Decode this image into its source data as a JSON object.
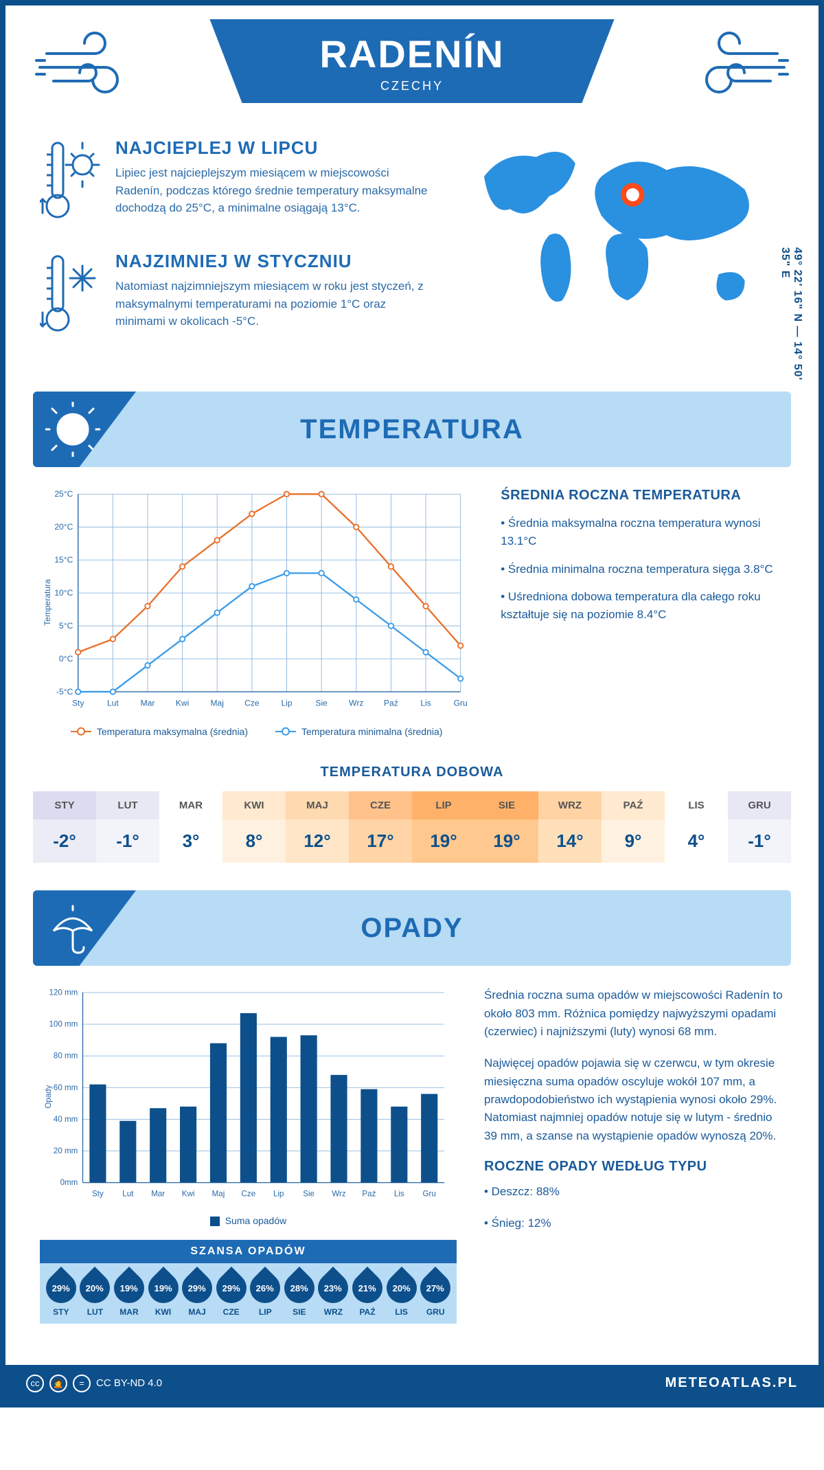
{
  "header": {
    "title": "RADENÍN",
    "country": "CZECHY",
    "coords": "49° 22' 16\" N — 14° 50' 35\" E"
  },
  "facts": {
    "hot": {
      "title": "NAJCIEPLEJ W LIPCU",
      "text": "Lipiec jest najcieplejszym miesiącem w miejscowości Radenín, podczas którego średnie temperatury maksymalne dochodzą do 25°C, a minimalne osiągają 13°C."
    },
    "cold": {
      "title": "NAJZIMNIEJ W STYCZNIU",
      "text": "Natomiast najzimniejszym miesiącem w roku jest styczeń, z maksymalnymi temperaturami na poziomie 1°C oraz minimami w okolicach -5°C."
    }
  },
  "sections": {
    "temp": "TEMPERATURA",
    "precip": "OPADY"
  },
  "temp_chart": {
    "type": "line",
    "months": [
      "Sty",
      "Lut",
      "Mar",
      "Kwi",
      "Maj",
      "Cze",
      "Lip",
      "Sie",
      "Wrz",
      "Paź",
      "Lis",
      "Gru"
    ],
    "y_axis_label": "Temperatura",
    "ylim": [
      -5,
      25
    ],
    "ytick_step": 5,
    "ytick_labels": [
      "-5°C",
      "0°C",
      "5°C",
      "10°C",
      "15°C",
      "20°C",
      "25°C"
    ],
    "grid_color": "#8fb8df",
    "series": {
      "max": {
        "label": "Temperatura maksymalna (średnia)",
        "color": "#e8702a",
        "values": [
          1,
          3,
          8,
          14,
          18,
          22,
          25,
          25,
          20,
          14,
          8,
          2
        ]
      },
      "min": {
        "label": "Temperatura minimalna (średnia)",
        "color": "#3a9be8",
        "values": [
          -5,
          -5,
          -1,
          3,
          7,
          11,
          13,
          13,
          9,
          5,
          1,
          -3
        ]
      }
    }
  },
  "temp_text": {
    "title": "ŚREDNIA ROCZNA TEMPERATURA",
    "bullets": [
      "• Średnia maksymalna roczna temperatura wynosi 13.1°C",
      "• Średnia minimalna roczna temperatura sięga 3.8°C",
      "• Uśredniona dobowa temperatura dla całego roku kształtuje się na poziomie 8.4°C"
    ]
  },
  "daily": {
    "title": "TEMPERATURA DOBOWA",
    "months": [
      "STY",
      "LUT",
      "MAR",
      "KWI",
      "MAJ",
      "CZE",
      "LIP",
      "SIE",
      "WRZ",
      "PAŹ",
      "LIS",
      "GRU"
    ],
    "values": [
      "-2°",
      "-1°",
      "3°",
      "8°",
      "12°",
      "17°",
      "19°",
      "19°",
      "14°",
      "9°",
      "4°",
      "-1°"
    ],
    "head_colors": [
      "#dcdcf0",
      "#e8e8f5",
      "#ffffff",
      "#ffe9cf",
      "#ffd9b0",
      "#ffc28a",
      "#ffb169",
      "#ffb169",
      "#ffd3a3",
      "#ffe9cf",
      "#ffffff",
      "#e8e8f5"
    ],
    "body_colors": [
      "#ececf6",
      "#f3f3fa",
      "#ffffff",
      "#fff1e0",
      "#ffe6c8",
      "#ffd4a6",
      "#ffc88e",
      "#ffc88e",
      "#ffe0ba",
      "#fff1e0",
      "#ffffff",
      "#f3f3fa"
    ]
  },
  "precip_chart": {
    "type": "bar",
    "months": [
      "Sty",
      "Lut",
      "Mar",
      "Kwi",
      "Maj",
      "Cze",
      "Lip",
      "Sie",
      "Wrz",
      "Paź",
      "Lis",
      "Gru"
    ],
    "y_axis_label": "Opady",
    "values_mm": [
      62,
      39,
      47,
      48,
      88,
      107,
      92,
      93,
      68,
      59,
      48,
      56
    ],
    "ylim": [
      0,
      120
    ],
    "ytick_step": 20,
    "ytick_labels": [
      "0mm",
      "20 mm",
      "40 mm",
      "60 mm",
      "80 mm",
      "100 mm",
      "120 mm"
    ],
    "bar_color": "#0d4f8b",
    "grid_color": "#8fb8df",
    "legend": "Suma opadów"
  },
  "precip_text": {
    "p1": "Średnia roczna suma opadów w miejscowości Radenín to około 803 mm. Różnica pomiędzy najwyższymi opadami (czerwiec) i najniższymi (luty) wynosi 68 mm.",
    "p2": "Najwięcej opadów pojawia się w czerwcu, w tym okresie miesięczna suma opadów oscyluje wokół 107 mm, a prawdopodobieństwo ich wystąpienia wynosi około 29%. Natomiast najmniej opadów notuje się w lutym - średnio 39 mm, a szanse na wystąpienie opadów wynoszą 20%.",
    "type_title": "ROCZNE OPADY WEDŁUG TYPU",
    "types": [
      "• Deszcz: 88%",
      "• Śnieg: 12%"
    ]
  },
  "chance": {
    "title": "SZANSA OPADÓW",
    "months": [
      "STY",
      "LUT",
      "MAR",
      "KWI",
      "MAJ",
      "CZE",
      "LIP",
      "SIE",
      "WRZ",
      "PAŹ",
      "LIS",
      "GRU"
    ],
    "values": [
      "29%",
      "20%",
      "19%",
      "19%",
      "29%",
      "29%",
      "26%",
      "28%",
      "23%",
      "21%",
      "20%",
      "27%"
    ]
  },
  "footer": {
    "license": "CC BY-ND 4.0",
    "site": "METEOATLAS.PL"
  },
  "colors": {
    "blue_dark": "#0d4f8b",
    "blue_primary": "#1e6bb5",
    "blue_light": "#b8dcf5",
    "orange": "#e8702a"
  }
}
